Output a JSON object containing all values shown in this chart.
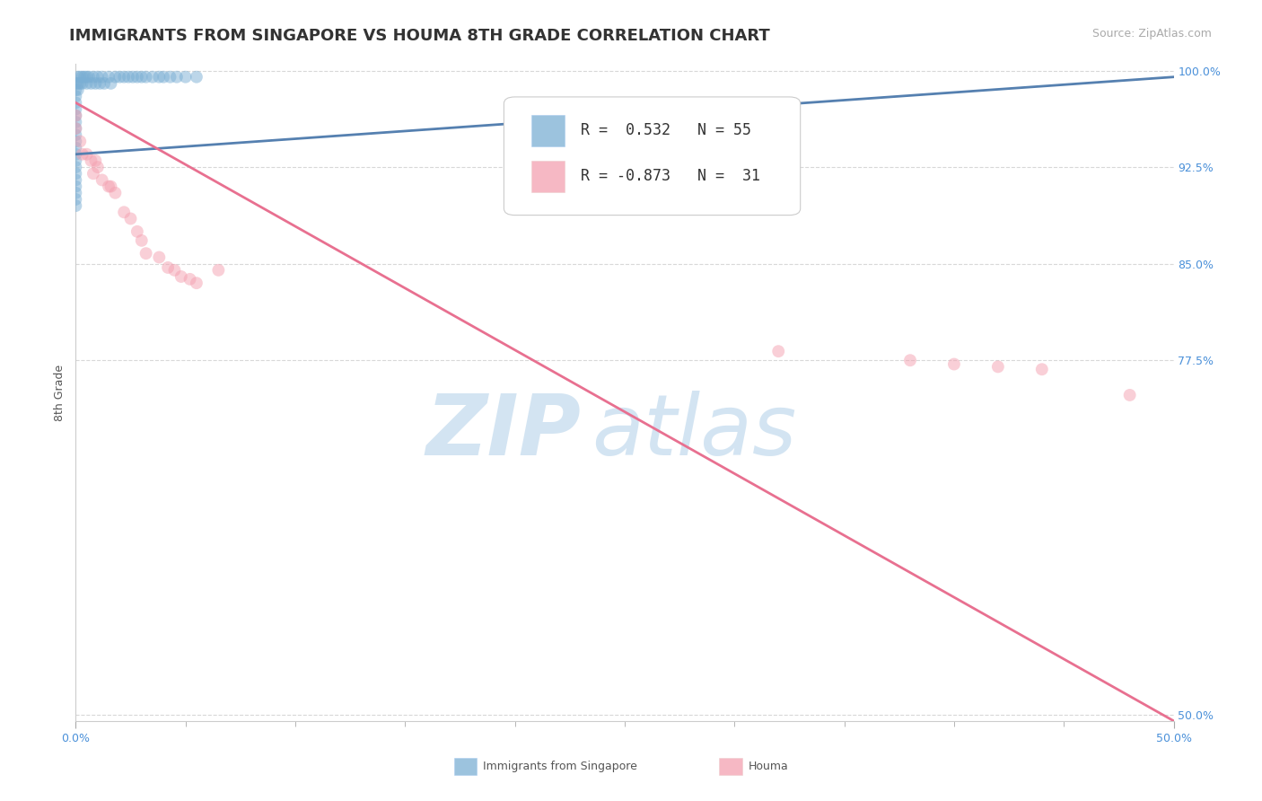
{
  "title": "IMMIGRANTS FROM SINGAPORE VS HOUMA 8TH GRADE CORRELATION CHART",
  "source_text": "Source: ZipAtlas.com",
  "ylabel": "8th Grade",
  "xlim_pct": [
    0.0,
    0.5
  ],
  "ylim_pct": [
    0.495,
    1.005
  ],
  "yticks_pct": [
    0.5,
    0.775,
    0.85,
    0.925,
    1.0
  ],
  "ytick_labels": [
    "50.0%",
    "77.5%",
    "85.0%",
    "92.5%",
    "100.0%"
  ],
  "xtick_left_label": "0.0%",
  "xtick_right_label": "50.0%",
  "blue_color": "#7bafd4",
  "pink_color": "#f4a0b0",
  "blue_line_color": "#5580b0",
  "pink_line_color": "#e87090",
  "legend_blue_r": "0.532",
  "legend_blue_n": "55",
  "legend_pink_r": "-0.873",
  "legend_pink_n": "31",
  "watermark_zip": "ZIP",
  "watermark_atlas": "atlas",
  "watermark_color": "#cce0f0",
  "bottom_label_blue": "Immigrants from Singapore",
  "bottom_label_pink": "Houma",
  "blue_scatter_x": [
    0.0,
    0.0,
    0.0,
    0.0,
    0.0,
    0.0,
    0.0,
    0.0,
    0.0,
    0.0,
    0.0,
    0.0,
    0.0,
    0.0,
    0.0,
    0.0,
    0.0,
    0.0,
    0.0,
    0.0,
    0.001,
    0.001,
    0.001,
    0.002,
    0.002,
    0.003,
    0.003,
    0.004,
    0.005,
    0.005,
    0.006,
    0.007,
    0.008,
    0.009,
    0.01,
    0.011,
    0.012,
    0.013,
    0.015,
    0.016,
    0.018,
    0.02,
    0.022,
    0.024,
    0.026,
    0.028,
    0.03,
    0.032,
    0.035,
    0.038,
    0.04,
    0.043,
    0.046,
    0.05,
    0.055
  ],
  "blue_scatter_y": [
    0.98,
    0.975,
    0.97,
    0.965,
    0.96,
    0.955,
    0.95,
    0.945,
    0.94,
    0.935,
    0.93,
    0.925,
    0.92,
    0.915,
    0.91,
    0.905,
    0.9,
    0.895,
    0.99,
    0.985,
    0.995,
    0.99,
    0.985,
    0.995,
    0.99,
    0.995,
    0.99,
    0.995,
    0.995,
    0.99,
    0.995,
    0.99,
    0.995,
    0.99,
    0.995,
    0.99,
    0.995,
    0.99,
    0.995,
    0.99,
    0.995,
    0.995,
    0.995,
    0.995,
    0.995,
    0.995,
    0.995,
    0.995,
    0.995,
    0.995,
    0.995,
    0.995,
    0.995,
    0.995,
    0.995
  ],
  "pink_scatter_x": [
    0.0,
    0.0,
    0.002,
    0.003,
    0.005,
    0.007,
    0.008,
    0.009,
    0.01,
    0.012,
    0.015,
    0.016,
    0.018,
    0.022,
    0.025,
    0.028,
    0.03,
    0.032,
    0.038,
    0.042,
    0.045,
    0.048,
    0.052,
    0.055,
    0.065,
    0.32,
    0.38,
    0.4,
    0.42,
    0.44,
    0.48
  ],
  "pink_scatter_y": [
    0.965,
    0.955,
    0.945,
    0.935,
    0.935,
    0.93,
    0.92,
    0.93,
    0.925,
    0.915,
    0.91,
    0.91,
    0.905,
    0.89,
    0.885,
    0.875,
    0.868,
    0.858,
    0.855,
    0.847,
    0.845,
    0.84,
    0.838,
    0.835,
    0.845,
    0.782,
    0.775,
    0.772,
    0.77,
    0.768,
    0.748
  ],
  "blue_trendline_x": [
    0.0,
    0.5
  ],
  "blue_trendline_y": [
    0.935,
    0.995
  ],
  "pink_trendline_x": [
    0.0,
    0.5
  ],
  "pink_trendline_y": [
    0.975,
    0.495
  ],
  "title_fontsize": 13,
  "axis_label_fontsize": 9,
  "tick_fontsize": 9,
  "legend_fontsize": 12,
  "source_fontsize": 9,
  "marker_size": 100,
  "marker_alpha": 0.5,
  "grid_color": "#d8d8d8",
  "background_color": "#ffffff",
  "axis_color": "#cccccc"
}
